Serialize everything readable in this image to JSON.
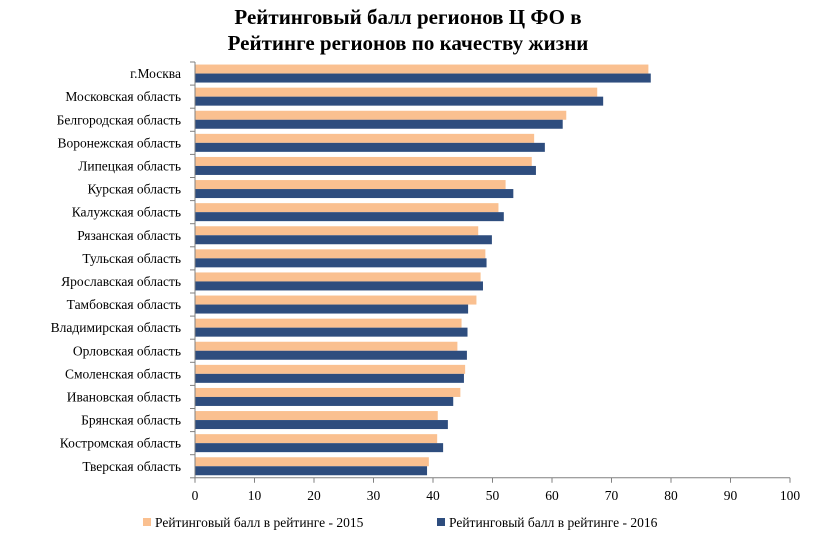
{
  "chart_data": {
    "type": "bar",
    "orientation": "horizontal",
    "title_lines": [
      "Рейтинговый балл регионов Ц ФО в",
      "Рейтинге регионов по качеству жизни"
    ],
    "categories": [
      "г.Москва",
      "Московская область",
      "Белгородская область",
      "Воронежская область",
      "Липецкая область",
      "Курская область",
      "Калужская область",
      "Рязанская область",
      "Тульская область",
      "Ярославская область",
      "Тамбовская область",
      "Владимирская область",
      "Орловская область",
      "Смоленская область",
      "Ивановская область",
      "Брянская область",
      "Костромская область",
      "Тверская область"
    ],
    "series": [
      {
        "name": "Рейтинговый балл в рейтинге - 2015",
        "color": "#FAC090",
        "values": [
          76.2,
          67.6,
          62.4,
          57.0,
          56.6,
          52.2,
          51.0,
          47.6,
          48.8,
          48.0,
          47.3,
          44.8,
          44.1,
          45.4,
          44.6,
          40.8,
          40.7,
          39.3
        ]
      },
      {
        "name": "Рейтинговый балл в рейтинге - 2016",
        "color": "#2E4D7E",
        "values": [
          76.6,
          68.6,
          61.8,
          58.8,
          57.3,
          53.5,
          51.9,
          49.9,
          49.0,
          48.4,
          45.9,
          45.8,
          45.7,
          45.2,
          43.4,
          42.5,
          41.7,
          39.0
        ]
      }
    ],
    "xlim": [
      0,
      100
    ],
    "x_ticks": [
      0,
      10,
      20,
      30,
      40,
      50,
      60,
      70,
      80,
      90,
      100
    ],
    "grid": false,
    "legend_position": "bottom"
  }
}
